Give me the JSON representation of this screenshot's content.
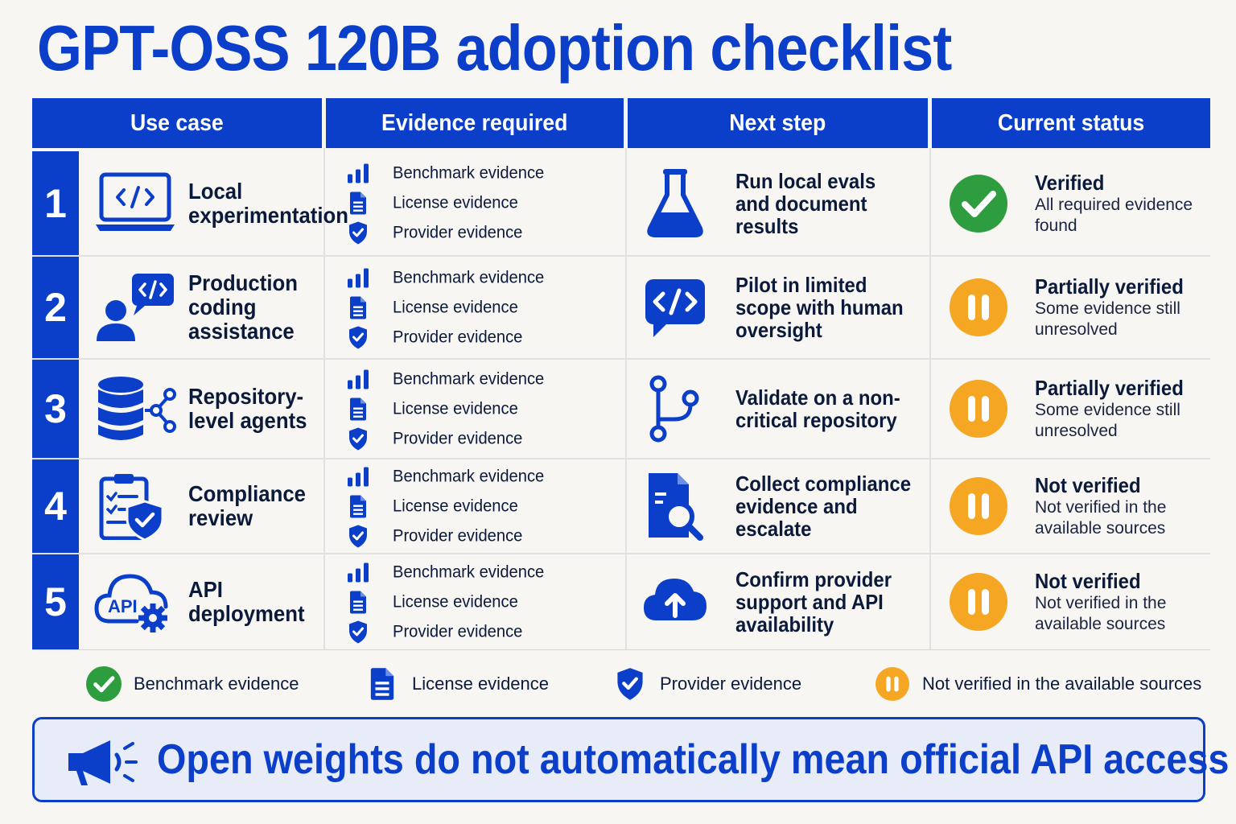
{
  "title": "GPT-OSS 120B adoption checklist",
  "headers": {
    "use_case": "Use case",
    "evidence": "Evidence required",
    "next_step": "Next step",
    "status": "Current status"
  },
  "evidence_labels": {
    "benchmark": "Benchmark evidence",
    "license": "License evidence",
    "provider": "Provider evidence"
  },
  "rows": [
    {
      "num": "1",
      "use_case_icon": "laptop-code-icon",
      "use_case": "Local experimentation",
      "next_step_icon": "flask-icon",
      "next_step": "Run local evals and document results",
      "status_icon": "check-circle-icon",
      "status_title": "Verified",
      "status_sub": "All required evidence found"
    },
    {
      "num": "2",
      "use_case_icon": "user-code-bubble-icon",
      "use_case": "Production coding assistance",
      "next_step_icon": "code-bubble-icon",
      "next_step": "Pilot in limited scope with human oversight",
      "status_icon": "pause-circle-icon",
      "status_title": "Partially verified",
      "status_sub": "Some evidence still unresolved"
    },
    {
      "num": "3",
      "use_case_icon": "database-network-icon",
      "use_case": "Repository-level agents",
      "next_step_icon": "git-branch-icon",
      "next_step": "Validate on a non-critical repository",
      "status_icon": "pause-circle-icon",
      "status_title": "Partially verified",
      "status_sub": "Some evidence still unresolved"
    },
    {
      "num": "4",
      "use_case_icon": "clipboard-shield-icon",
      "use_case": "Compliance review",
      "next_step_icon": "document-search-icon",
      "next_step": "Collect compliance evidence and escalate",
      "status_icon": "pause-circle-icon",
      "status_title": "Not verified",
      "status_sub": "Not verified in the available sources"
    },
    {
      "num": "5",
      "use_case_icon": "api-cloud-gear-icon",
      "use_case": "API deployment",
      "next_step_icon": "cloud-upload-icon",
      "next_step": "Confirm provider support and API availability",
      "status_icon": "pause-circle-icon",
      "status_title": "Not verified",
      "status_sub": "Not verified in the available sources"
    }
  ],
  "legend": {
    "benchmark": "Benchmark evidence",
    "license": "License evidence",
    "provider": "Provider evidence",
    "not_verified": "Not verified in the available sources"
  },
  "banner": {
    "icon": "megaphone-icon",
    "text": "Open weights do not automatically mean official API access"
  },
  "colors": {
    "primary": "#0b3ec9",
    "verified": "#2e9d3f",
    "pending": "#f5a623",
    "background": "#f7f6f2"
  }
}
